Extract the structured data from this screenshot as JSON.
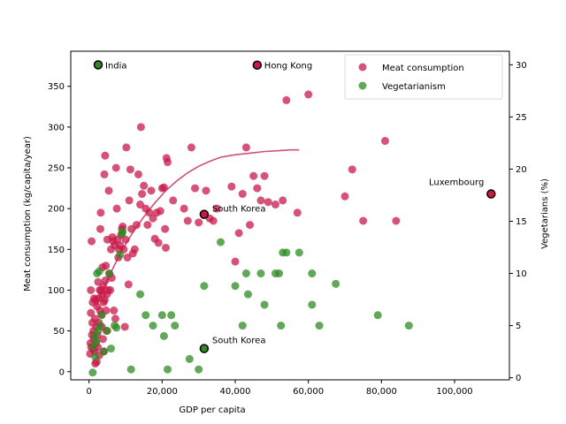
{
  "chart_data": {
    "type": "scatter",
    "title": "",
    "xlabel": "GDP per capita",
    "ylabel": "Meat consumption (kg/capita/year)",
    "y2label": "Vegetarians (%)",
    "xlim": [
      -5000,
      115000
    ],
    "ylim": [
      -10,
      393
    ],
    "y2lim": [
      -0.2,
      31.3
    ],
    "x_ticks": [
      0,
      20000,
      40000,
      60000,
      80000,
      100000
    ],
    "x_tick_labels": [
      "0",
      "20,000",
      "40,000",
      "60,000",
      "80,000",
      "100,000"
    ],
    "y_ticks": [
      0,
      50,
      100,
      150,
      200,
      250,
      300,
      350
    ],
    "y_tick_labels": [
      "0",
      "50",
      "100",
      "150",
      "200",
      "250",
      "300",
      "350"
    ],
    "y2_ticks": [
      0,
      5,
      10,
      15,
      20,
      25,
      30
    ],
    "y2_tick_labels": [
      "0",
      "5",
      "10",
      "15",
      "20",
      "25",
      "30"
    ],
    "grid": false,
    "legend": {
      "position": "top-right",
      "entries": [
        {
          "label": "Meat consumption",
          "color": "#c8184a"
        },
        {
          "label": "Vegetarianism",
          "color": "#2e8b22"
        }
      ]
    },
    "series": [
      {
        "name": "Meat consumption",
        "axis": "left",
        "color": "#c8184a",
        "points": [
          [
            300,
            22
          ],
          [
            400,
            35
          ],
          [
            500,
            72
          ],
          [
            500,
            100
          ],
          [
            600,
            30
          ],
          [
            700,
            160
          ],
          [
            800,
            45
          ],
          [
            900,
            60
          ],
          [
            1000,
            85
          ],
          [
            1100,
            28
          ],
          [
            1200,
            50
          ],
          [
            1300,
            40
          ],
          [
            1400,
            90
          ],
          [
            1500,
            25
          ],
          [
            1600,
            65
          ],
          [
            1700,
            10
          ],
          [
            1800,
            88
          ],
          [
            1900,
            35
          ],
          [
            2000,
            55
          ],
          [
            2100,
            12
          ],
          [
            2200,
            80
          ],
          [
            2300,
            45
          ],
          [
            2400,
            30
          ],
          [
            2500,
            110
          ],
          [
            2600,
            90
          ],
          [
            2700,
            60
          ],
          [
            2800,
            20
          ],
          [
            2900,
            100
          ],
          [
            3000,
            75
          ],
          [
            3100,
            175
          ],
          [
            3200,
            195
          ],
          [
            3300,
            100
          ],
          [
            3400,
            70
          ],
          [
            3500,
            55
          ],
          [
            3600,
            95
          ],
          [
            3700,
            128
          ],
          [
            3800,
            40
          ],
          [
            3900,
            105
          ],
          [
            4000,
            85
          ],
          [
            4100,
            25
          ],
          [
            4200,
            242
          ],
          [
            4300,
            88
          ],
          [
            4400,
            265
          ],
          [
            4500,
            112
          ],
          [
            4600,
            130
          ],
          [
            4700,
            75
          ],
          [
            4800,
            50
          ],
          [
            4900,
            95
          ],
          [
            5000,
            162
          ],
          [
            5200,
            100
          ],
          [
            5400,
            222
          ],
          [
            5600,
            120
          ],
          [
            5800,
            100
          ],
          [
            6000,
            150
          ],
          [
            6200,
            115
          ],
          [
            6400,
            165
          ],
          [
            6600,
            160
          ],
          [
            6800,
            75
          ],
          [
            7000,
            155
          ],
          [
            7200,
            65
          ],
          [
            7400,
            250
          ],
          [
            7600,
            200
          ],
          [
            7800,
            162
          ],
          [
            8000,
            140
          ],
          [
            8200,
            150
          ],
          [
            8500,
            155
          ],
          [
            8800,
            168
          ],
          [
            9000,
            175
          ],
          [
            9200,
            178
          ],
          [
            9500,
            150
          ],
          [
            9800,
            55
          ],
          [
            10000,
            162
          ],
          [
            10200,
            275
          ],
          [
            10500,
            140
          ],
          [
            10800,
            107
          ],
          [
            11000,
            210
          ],
          [
            11300,
            248
          ],
          [
            11600,
            175
          ],
          [
            12000,
            145
          ],
          [
            12500,
            150
          ],
          [
            13000,
            180
          ],
          [
            13500,
            242
          ],
          [
            14000,
            205
          ],
          [
            14200,
            300
          ],
          [
            14500,
            218
          ],
          [
            15000,
            228
          ],
          [
            15500,
            200
          ],
          [
            16000,
            180
          ],
          [
            16500,
            195
          ],
          [
            17000,
            222
          ],
          [
            17500,
            188
          ],
          [
            18000,
            163
          ],
          [
            18500,
            195
          ],
          [
            19000,
            158
          ],
          [
            19500,
            197
          ],
          [
            20000,
            225
          ],
          [
            20500,
            226
          ],
          [
            20800,
            175
          ],
          [
            21000,
            152
          ],
          [
            21200,
            262
          ],
          [
            21500,
            257
          ],
          [
            23000,
            210
          ],
          [
            26000,
            200
          ],
          [
            27000,
            185
          ],
          [
            28000,
            275
          ],
          [
            29000,
            225
          ],
          [
            30000,
            183
          ],
          [
            32000,
            222
          ],
          [
            33000,
            188
          ],
          [
            34000,
            185
          ],
          [
            35000,
            200
          ],
          [
            39000,
            227
          ],
          [
            40000,
            135
          ],
          [
            41000,
            170
          ],
          [
            42000,
            218
          ],
          [
            43000,
            275
          ],
          [
            44000,
            180
          ],
          [
            45000,
            240
          ],
          [
            46000,
            225
          ],
          [
            47000,
            210
          ],
          [
            48000,
            240
          ],
          [
            49000,
            208
          ],
          [
            51000,
            205
          ],
          [
            53000,
            210
          ],
          [
            54000,
            333
          ],
          [
            57000,
            195
          ],
          [
            60000,
            340
          ],
          [
            70000,
            215
          ],
          [
            72000,
            248
          ],
          [
            75000,
            185
          ],
          [
            81000,
            283
          ],
          [
            84000,
            185
          ]
        ]
      },
      {
        "name": "Vegetarianism",
        "axis": "right",
        "color": "#2e8b22",
        "points": [
          [
            1000,
            0.5
          ],
          [
            1200,
            3.0
          ],
          [
            1500,
            4.0
          ],
          [
            1700,
            2.0
          ],
          [
            2000,
            3.5
          ],
          [
            2200,
            10.0
          ],
          [
            2500,
            4.5
          ],
          [
            2800,
            10.2
          ],
          [
            3000,
            5.0
          ],
          [
            3500,
            6.0
          ],
          [
            4000,
            2.5
          ],
          [
            5000,
            4.5
          ],
          [
            5500,
            10.0
          ],
          [
            6000,
            2.8
          ],
          [
            7000,
            5.0
          ],
          [
            7500,
            4.8
          ],
          [
            8500,
            11.8
          ],
          [
            9000,
            13.8
          ],
          [
            9200,
            14.0
          ],
          [
            11500,
            0.8
          ],
          [
            14000,
            8.0
          ],
          [
            15500,
            6.0
          ],
          [
            17500,
            5.0
          ],
          [
            20000,
            6.0
          ],
          [
            20500,
            4.0
          ],
          [
            21500,
            0.8
          ],
          [
            22500,
            6.0
          ],
          [
            23500,
            5.0
          ],
          [
            27500,
            1.8
          ],
          [
            30000,
            0.8
          ],
          [
            31500,
            8.8
          ],
          [
            36000,
            13.0
          ],
          [
            40000,
            8.8
          ],
          [
            42000,
            5.0
          ],
          [
            43000,
            10.0
          ],
          [
            43500,
            8.0
          ],
          [
            47000,
            10.0
          ],
          [
            48000,
            7.0
          ],
          [
            51000,
            10.0
          ],
          [
            52000,
            10.0
          ],
          [
            52500,
            5.0
          ],
          [
            53000,
            12.0
          ],
          [
            54000,
            12.0
          ],
          [
            57500,
            12.0
          ],
          [
            61000,
            10.0
          ],
          [
            61000,
            7.0
          ],
          [
            63000,
            5.0
          ],
          [
            67500,
            9.0
          ],
          [
            79000,
            6.0
          ],
          [
            87500,
            5.0
          ]
        ]
      }
    ],
    "trend": {
      "name": "trend",
      "axis": "left",
      "color": "#d0507a",
      "points": [
        [
          2000,
          80
        ],
        [
          4000,
          102
        ],
        [
          6000,
          122
        ],
        [
          8000,
          140
        ],
        [
          10000,
          156
        ],
        [
          12000,
          171
        ],
        [
          15000,
          190
        ],
        [
          18000,
          207
        ],
        [
          21000,
          222
        ],
        [
          24000,
          234
        ],
        [
          27000,
          244
        ],
        [
          30000,
          252
        ],
        [
          33000,
          258
        ],
        [
          36000,
          263
        ],
        [
          40000,
          266
        ],
        [
          44000,
          268
        ],
        [
          48000,
          270
        ],
        [
          52000,
          271
        ],
        [
          55000,
          272
        ],
        [
          57500,
          272
        ]
      ]
    },
    "highlights": [
      {
        "label": "India",
        "axis": "right",
        "x": 2500,
        "y": 30,
        "color": "#2e8b22",
        "label_side": "right"
      },
      {
        "label": "Hong Kong",
        "axis": "left",
        "x": 46000,
        "y": 376,
        "color": "#c8184a",
        "label_side": "right"
      },
      {
        "label": "South Korea",
        "axis": "left",
        "x": 31500,
        "y": 193,
        "color": "#c8184a",
        "label_side": "right-below"
      },
      {
        "label": "South Korea",
        "axis": "right",
        "x": 31500,
        "y": 2.8,
        "color": "#2e8b22",
        "label_side": "right-above"
      },
      {
        "label": "Luxembourg",
        "axis": "left",
        "x": 110000,
        "y": 218,
        "color": "#c8184a",
        "label_side": "left-above"
      }
    ]
  }
}
